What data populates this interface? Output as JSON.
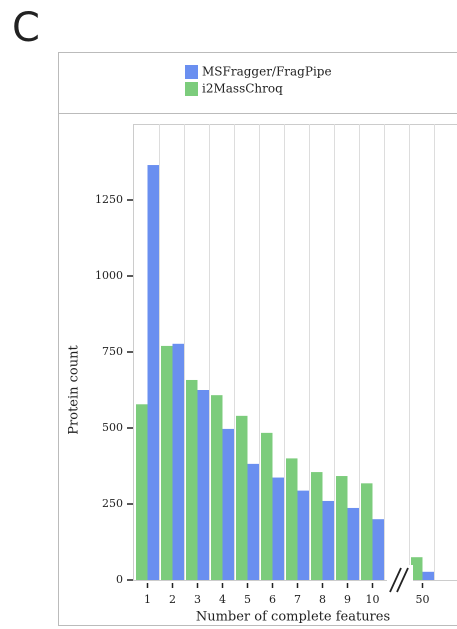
{
  "panel_label": "C",
  "chart_data": {
    "type": "bar",
    "x_label": "Number of complete features",
    "y_label": "Protein count",
    "categories": [
      "1",
      "2",
      "3",
      "4",
      "5",
      "6",
      "7",
      "8",
      "9",
      "10",
      null,
      "50"
    ],
    "series": [
      {
        "name": "MSFragger/FragPipe",
        "color": "#6a8ff0",
        "values": [
          1365,
          777,
          625,
          497,
          382,
          337,
          294,
          260,
          237,
          200,
          null,
          27
        ]
      },
      {
        "name": "i2MassChroq",
        "color": "#7ccc7c",
        "values": [
          578,
          770,
          658,
          608,
          540,
          484,
          400,
          355,
          342,
          318,
          null,
          75
        ]
      }
    ],
    "ylim": [
      0,
      1500
    ],
    "yticks": [
      0,
      250,
      500,
      750,
      1000,
      1250
    ],
    "grid": true
  }
}
